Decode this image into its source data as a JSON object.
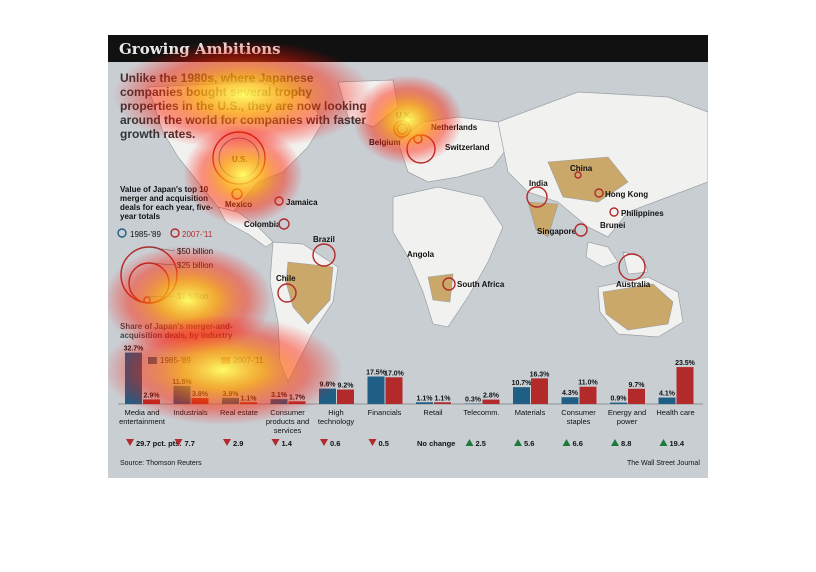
{
  "title": "Growing Ambitions",
  "intro": "Unlike the 1980s, where Japanese companies bought several trophy properties in the U.S., they are now looking around the world for companies with faster growth rates.",
  "map": {
    "legend_title": "Value of Japan's top 10 merger and acquisition deals for each year, five-year totals",
    "legend_period_1": "1985-'89",
    "legend_period_2": "2007-'11",
    "size_50": "$50 billion",
    "size_25": "$25 billion",
    "size_1": "$1 billion",
    "places": [
      "U.S.",
      "Mexico",
      "Jamaica",
      "Colombia",
      "Brazil",
      "Chile",
      "U.K.",
      "Netherlands",
      "Belgium",
      "Switzerland",
      "Angola",
      "South Africa",
      "India",
      "China",
      "Hong Kong",
      "Philippines",
      "Singapore",
      "Brunei",
      "Australia"
    ]
  },
  "chart_data": {
    "type": "bar",
    "subtitle": "Share of Japan's merger-and-acquisition deals, by industry",
    "categories": [
      "Media and entertainment",
      "Industrials",
      "Real estate",
      "Consumer products and services",
      "High technology",
      "Financials",
      "Retail",
      "Telecomm.",
      "Materials",
      "Consumer staples",
      "Energy and power",
      "Health care"
    ],
    "series": [
      {
        "name": "1985-'89",
        "values": [
          32.7,
          11.5,
          3.9,
          3.1,
          9.8,
          17.5,
          1.1,
          0.3,
          10.7,
          4.3,
          0.9,
          4.1
        ],
        "labels": [
          "32.7%",
          "11.5%",
          "3.9%",
          "3.1%",
          "9.8%",
          "17.5%",
          "1.1%",
          "0.3%",
          "10.7%",
          "4.3%",
          "0.9%",
          "4.1%"
        ]
      },
      {
        "name": "2007-'11",
        "values": [
          2.9,
          3.8,
          1.1,
          1.7,
          9.2,
          17.0,
          1.1,
          2.8,
          16.3,
          11.0,
          9.7,
          23.5
        ],
        "labels": [
          "2.9%",
          "3.8%",
          "1.1%",
          "1.7%",
          "9.2%",
          "17.0%",
          "1.1%",
          "2.8%",
          "16.3%",
          "11.0%",
          "9.7%",
          "23.5%"
        ]
      }
    ],
    "changes": [
      "29.7 pct. pts.",
      "7.7",
      "2.9",
      "1.4",
      "0.6",
      "0.5",
      "No change",
      "2.5",
      "5.6",
      "6.6",
      "8.8",
      "19.4"
    ],
    "change_direction": [
      "down",
      "down",
      "down",
      "down",
      "down",
      "down",
      "none",
      "up",
      "up",
      "up",
      "up",
      "up"
    ],
    "colors": {
      "series1": "#1f5f86",
      "series2": "#b22a2a",
      "up": "#1e7a3a",
      "down": "#b22a2a"
    },
    "ylim": [
      0,
      35
    ]
  },
  "source": "Source: Thomson Reuters",
  "credit": "The Wall Street Journal"
}
